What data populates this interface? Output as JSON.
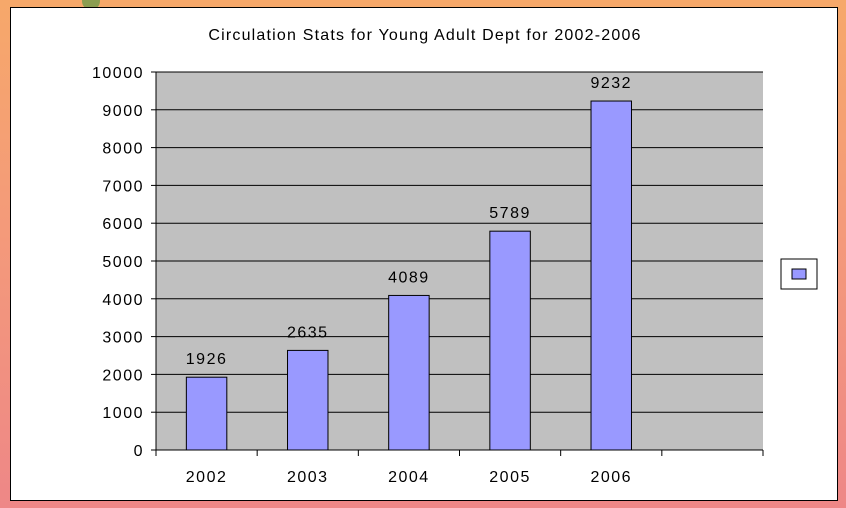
{
  "chart_data": {
    "type": "bar",
    "title": "Circulation Stats for Young Adult Dept for 2002-2006",
    "categories": [
      "2002",
      "2003",
      "2004",
      "2005",
      "2006"
    ],
    "series": [
      {
        "values": [
          1926,
          2635,
          4089,
          5789,
          9232
        ]
      }
    ],
    "y_ticks": [
      "0",
      "1000",
      "2000",
      "3000",
      "4000",
      "5000",
      "6000",
      "7000",
      "8000",
      "9000",
      "10000"
    ],
    "ylim": [
      0,
      10000
    ],
    "grid": true,
    "legend": "right",
    "colors": {
      "bar": "#9999ff",
      "plot_bg": "#c0c0c0",
      "grid": "#000000"
    }
  }
}
